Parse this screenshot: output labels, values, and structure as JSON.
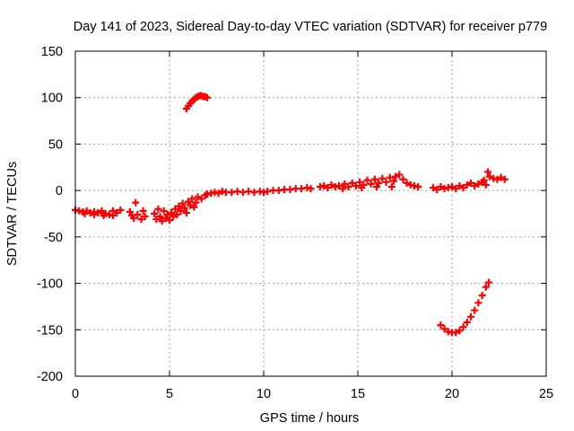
{
  "chart_data": {
    "type": "scatter",
    "title": "Day 141 of 2023, Sidereal Day-to-day VTEC variation (SDTVAR) for receiver p779",
    "xlabel": "GPS time / hours",
    "ylabel": "SDTVAR / TECUs",
    "xlim": [
      0,
      25
    ],
    "ylim": [
      -200,
      150
    ],
    "xticks": [
      0,
      5,
      10,
      15,
      20,
      25
    ],
    "yticks": [
      -200,
      -150,
      -100,
      -50,
      0,
      50,
      100,
      150
    ],
    "grid": true,
    "marker": "+",
    "series": [
      {
        "name": "SDTVAR",
        "color": "#ff0000",
        "points": [
          [
            0.0,
            -21
          ],
          [
            0.2,
            -22
          ],
          [
            0.4,
            -23
          ],
          [
            0.6,
            -22
          ],
          [
            0.8,
            -24
          ],
          [
            1.0,
            -23
          ],
          [
            1.2,
            -24
          ],
          [
            1.4,
            -22
          ],
          [
            1.6,
            -25
          ],
          [
            1.8,
            -26
          ],
          [
            2.0,
            -27
          ],
          [
            2.2,
            -24
          ],
          [
            2.4,
            -21
          ],
          [
            0.5,
            -25
          ],
          [
            1.0,
            -26
          ],
          [
            1.5,
            -27
          ],
          [
            2.0,
            -22
          ],
          [
            2.9,
            -23
          ],
          [
            3.0,
            -27
          ],
          [
            3.1,
            -30
          ],
          [
            3.3,
            -26
          ],
          [
            3.5,
            -31
          ],
          [
            3.6,
            -22
          ],
          [
            3.7,
            -28
          ],
          [
            3.2,
            -13
          ],
          [
            4.2,
            -25
          ],
          [
            4.3,
            -31
          ],
          [
            4.4,
            -20
          ],
          [
            4.5,
            -28
          ],
          [
            4.6,
            -33
          ],
          [
            4.7,
            -22
          ],
          [
            4.8,
            -30
          ],
          [
            4.9,
            -26
          ],
          [
            5.0,
            -32
          ],
          [
            5.1,
            -24
          ],
          [
            5.2,
            -28
          ],
          [
            5.3,
            -20
          ],
          [
            5.4,
            -26
          ],
          [
            5.5,
            -17
          ],
          [
            5.6,
            -22
          ],
          [
            5.7,
            -14
          ],
          [
            5.8,
            -19
          ],
          [
            6.0,
            -12
          ],
          [
            6.1,
            -16
          ],
          [
            6.2,
            -9
          ],
          [
            6.4,
            -13
          ],
          [
            6.5,
            -7
          ],
          [
            6.7,
            -9
          ],
          [
            6.9,
            -5
          ],
          [
            7.0,
            -4
          ],
          [
            6.3,
            -18
          ],
          [
            5.9,
            -24
          ],
          [
            7.2,
            -3
          ],
          [
            7.4,
            -2
          ],
          [
            7.6,
            -3
          ],
          [
            7.8,
            -1
          ],
          [
            8.0,
            -2
          ],
          [
            8.3,
            -2
          ],
          [
            8.6,
            -1
          ],
          [
            8.9,
            -2
          ],
          [
            9.2,
            -1
          ],
          [
            9.5,
            -2
          ],
          [
            9.8,
            -1
          ],
          [
            10.0,
            -2
          ],
          [
            10.2,
            -1
          ],
          [
            10.5,
            0
          ],
          [
            10.8,
            0
          ],
          [
            11.1,
            1
          ],
          [
            11.4,
            1
          ],
          [
            11.7,
            2
          ],
          [
            12.0,
            2
          ],
          [
            12.3,
            3
          ],
          [
            12.5,
            2
          ],
          [
            13.0,
            4
          ],
          [
            13.2,
            5
          ],
          [
            13.4,
            3
          ],
          [
            13.6,
            6
          ],
          [
            13.8,
            4
          ],
          [
            14.0,
            5
          ],
          [
            14.2,
            2
          ],
          [
            14.3,
            7
          ],
          [
            14.5,
            4
          ],
          [
            14.7,
            8
          ],
          [
            14.9,
            5
          ],
          [
            15.1,
            9
          ],
          [
            15.3,
            6
          ],
          [
            15.5,
            11
          ],
          [
            15.7,
            7
          ],
          [
            15.9,
            12
          ],
          [
            16.1,
            8
          ],
          [
            16.3,
            13
          ],
          [
            16.5,
            9
          ],
          [
            16.7,
            14
          ],
          [
            16.9,
            10
          ],
          [
            17.0,
            15
          ],
          [
            17.2,
            17
          ],
          [
            17.4,
            12
          ],
          [
            17.6,
            8
          ],
          [
            17.8,
            6
          ],
          [
            18.0,
            5
          ],
          [
            18.2,
            4
          ],
          [
            15.2,
            3
          ],
          [
            16.0,
            4
          ],
          [
            16.8,
            4
          ],
          [
            19.0,
            3
          ],
          [
            19.2,
            1
          ],
          [
            19.4,
            4
          ],
          [
            19.6,
            2
          ],
          [
            19.8,
            3
          ],
          [
            20.0,
            4
          ],
          [
            20.2,
            2
          ],
          [
            20.4,
            5
          ],
          [
            20.6,
            3
          ],
          [
            20.8,
            6
          ],
          [
            21.0,
            8
          ],
          [
            21.2,
            5
          ],
          [
            21.4,
            7
          ],
          [
            21.6,
            9
          ],
          [
            21.8,
            6
          ],
          [
            22.0,
            15
          ],
          [
            22.2,
            13
          ],
          [
            22.4,
            12
          ],
          [
            22.6,
            14
          ],
          [
            22.8,
            12
          ],
          [
            21.9,
            20
          ],
          [
            21.7,
            11
          ],
          [
            5.9,
            88
          ],
          [
            6.0,
            91
          ],
          [
            6.1,
            94
          ],
          [
            6.2,
            96
          ],
          [
            6.3,
            98
          ],
          [
            6.4,
            100
          ],
          [
            6.5,
            101
          ],
          [
            6.6,
            102
          ],
          [
            6.7,
            102
          ],
          [
            6.8,
            101
          ],
          [
            6.9,
            101
          ],
          [
            7.0,
            100
          ],
          [
            19.4,
            -145
          ],
          [
            19.6,
            -149
          ],
          [
            19.8,
            -152
          ],
          [
            20.0,
            -153
          ],
          [
            20.2,
            -153
          ],
          [
            20.4,
            -151
          ],
          [
            20.6,
            -147
          ],
          [
            20.8,
            -142
          ],
          [
            21.0,
            -136
          ],
          [
            21.2,
            -129
          ],
          [
            21.4,
            -121
          ],
          [
            21.6,
            -113
          ],
          [
            21.8,
            -104
          ],
          [
            21.95,
            -99
          ]
        ]
      }
    ]
  }
}
